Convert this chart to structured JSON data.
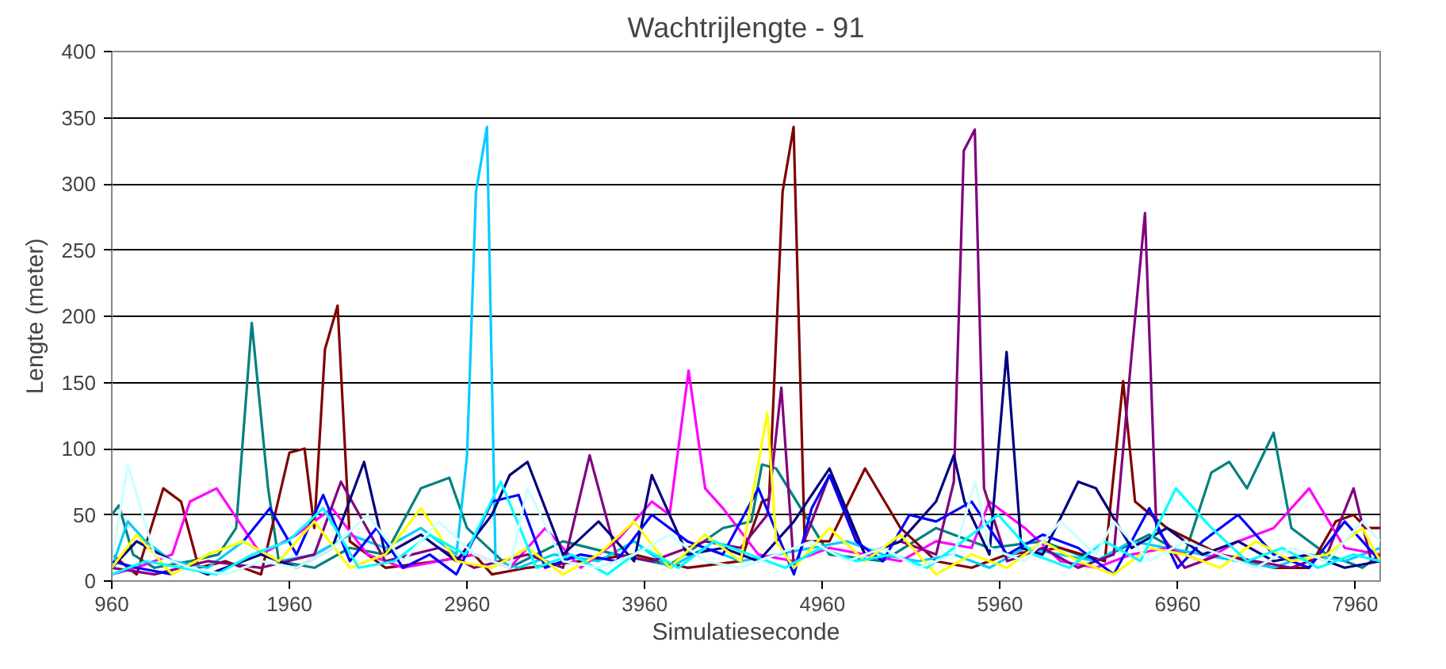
{
  "chart_data": {
    "type": "line",
    "title": "Wachtrijlengte - 91",
    "xlabel": "Simulatieseconde",
    "ylabel": "Lengte (meter)",
    "xlim": [
      960,
      8100
    ],
    "ylim": [
      0,
      400
    ],
    "xticks": [
      960,
      1960,
      2960,
      3960,
      4960,
      5960,
      6960,
      7960
    ],
    "yticks": [
      0,
      50,
      100,
      150,
      200,
      250,
      300,
      350,
      400
    ],
    "grid": "y",
    "marker": "none",
    "line_style": "solid",
    "series": [
      {
        "color": "#008080",
        "x": [
          960,
          1000,
          1080,
          1200,
          1400,
          1560,
          1660,
          1748,
          1840,
          1900,
          2100,
          2300,
          2500,
          2700,
          2860,
          2960,
          3200,
          3500,
          3800,
          4100,
          4400,
          4560,
          4620,
          4700,
          5000,
          5300,
          5600,
          5900,
          6200,
          6500,
          6800,
          7000,
          7150,
          7250,
          7350,
          7500,
          7600,
          7800,
          8000,
          8100
        ],
        "values": [
          50,
          57,
          20,
          10,
          15,
          20,
          40,
          195,
          70,
          15,
          10,
          25,
          20,
          70,
          78,
          40,
          10,
          30,
          20,
          12,
          40,
          45,
          88,
          85,
          20,
          15,
          40,
          25,
          30,
          15,
          35,
          20,
          82,
          90,
          70,
          112,
          40,
          20,
          10,
          20
        ]
      },
      {
        "color": "#800000",
        "x": [
          960,
          1100,
          1250,
          1350,
          1450,
          1600,
          1800,
          1960,
          2045,
          2100,
          2160,
          2231,
          2300,
          2500,
          2800,
          3000,
          3100,
          3300,
          3600,
          3900,
          4200,
          4500,
          4620,
          4660,
          4736,
          4798,
          4860,
          5000,
          5200,
          5400,
          5600,
          5800,
          6000,
          6300,
          6550,
          6653,
          6720,
          6900,
          7200,
          7500,
          7700,
          7850,
          7950,
          8020,
          8100
        ],
        "values": [
          20,
          5,
          70,
          60,
          10,
          15,
          5,
          97,
          100,
          40,
          175,
          208,
          30,
          10,
          15,
          20,
          5,
          10,
          15,
          20,
          10,
          15,
          60,
          62,
          294,
          343,
          30,
          30,
          85,
          40,
          15,
          10,
          20,
          25,
          15,
          151,
          60,
          40,
          20,
          10,
          10,
          45,
          50,
          40,
          40
        ]
      },
      {
        "color": "#00ccff",
        "x": [
          960,
          1050,
          1150,
          1300,
          1500,
          1700,
          1900,
          2100,
          2300,
          2500,
          2700,
          2900,
          2960,
          3010,
          3072,
          3120,
          3250,
          3450,
          3700,
          3900,
          4100,
          4300,
          4500,
          4700,
          4900,
          5100,
          5300,
          5500,
          5700,
          5900,
          6100,
          6300,
          6500,
          6700,
          6900,
          7100,
          7300,
          7500,
          7700,
          7900,
          8100
        ],
        "values": [
          10,
          45,
          30,
          15,
          10,
          30,
          15,
          20,
          35,
          25,
          40,
          20,
          95,
          294,
          343,
          15,
          10,
          20,
          15,
          30,
          10,
          25,
          15,
          20,
          25,
          30,
          20,
          15,
          20,
          10,
          25,
          20,
          15,
          30,
          25,
          20,
          15,
          10,
          20,
          15,
          25
        ]
      },
      {
        "color": "#ff00ff",
        "x": [
          960,
          1100,
          1300,
          1400,
          1550,
          1800,
          2000,
          2200,
          2400,
          2600,
          2800,
          3000,
          3200,
          3400,
          3600,
          3800,
          4000,
          4100,
          4207,
          4300,
          4400,
          4600,
          4800,
          5000,
          5200,
          5400,
          5600,
          5800,
          5900,
          6100,
          6300,
          6500,
          6700,
          6900,
          7100,
          7300,
          7500,
          7700,
          7900,
          8100
        ],
        "values": [
          5,
          10,
          20,
          60,
          70,
          20,
          35,
          55,
          20,
          10,
          15,
          20,
          10,
          40,
          10,
          30,
          60,
          50,
          159,
          70,
          55,
          20,
          15,
          25,
          20,
          15,
          30,
          25,
          60,
          40,
          15,
          10,
          20,
          25,
          15,
          30,
          40,
          70,
          25,
          20
        ]
      },
      {
        "color": "#800080",
        "x": [
          960,
          1200,
          1500,
          1800,
          2100,
          2250,
          2500,
          2800,
          3000,
          3300,
          3500,
          3650,
          3800,
          4000,
          4300,
          4500,
          4650,
          4729,
          4800,
          5000,
          5200,
          5400,
          5600,
          5700,
          5756,
          5818,
          5870,
          6000,
          6200,
          6400,
          6600,
          6700,
          6776,
          6840,
          7000,
          7200,
          7400,
          7600,
          7800,
          7950,
          8050,
          8100
        ],
        "values": [
          10,
          5,
          15,
          10,
          20,
          75,
          15,
          25,
          10,
          20,
          10,
          95,
          20,
          15,
          30,
          25,
          50,
          146,
          10,
          80,
          20,
          30,
          20,
          75,
          325,
          341,
          70,
          15,
          25,
          10,
          20,
          170,
          278,
          40,
          10,
          20,
          15,
          10,
          20,
          70,
          15,
          20
        ]
      },
      {
        "color": "#000080",
        "x": [
          960,
          1100,
          1300,
          1500,
          1800,
          2000,
          2200,
          2380,
          2500,
          2700,
          2900,
          3100,
          3200,
          3300,
          3500,
          3700,
          3900,
          4000,
          4200,
          4400,
          4600,
          4800,
          5000,
          5200,
          5400,
          5600,
          5700,
          5760,
          5900,
          5997,
          6080,
          6200,
          6400,
          6500,
          6700,
          6900,
          7100,
          7300,
          7500,
          7700,
          7900,
          8100
        ],
        "values": [
          10,
          30,
          15,
          5,
          20,
          10,
          25,
          90,
          20,
          35,
          15,
          50,
          80,
          90,
          20,
          45,
          15,
          80,
          20,
          25,
          15,
          45,
          85,
          20,
          30,
          60,
          95,
          60,
          20,
          173,
          25,
          20,
          75,
          70,
          25,
          40,
          20,
          30,
          15,
          20,
          10,
          15
        ]
      },
      {
        "color": "#0000ff",
        "x": [
          960,
          1100,
          1300,
          1500,
          1700,
          1850,
          2000,
          2150,
          2300,
          2450,
          2600,
          2750,
          2900,
          3100,
          3250,
          3400,
          3600,
          3800,
          4000,
          4200,
          4400,
          4600,
          4800,
          4900,
          5000,
          5150,
          5300,
          5450,
          5600,
          5800,
          6000,
          6200,
          6400,
          6600,
          6800,
          6960,
          7100,
          7300,
          7500,
          7700,
          7900,
          8100
        ],
        "values": [
          15,
          10,
          5,
          null,
          30,
          55,
          20,
          65,
          15,
          40,
          10,
          20,
          5,
          60,
          65,
          10,
          20,
          15,
          50,
          30,
          20,
          70,
          5,
          55,
          80,
          30,
          15,
          50,
          45,
          60,
          20,
          35,
          25,
          5,
          55,
          10,
          30,
          50,
          20,
          10,
          45,
          15
        ]
      },
      {
        "color": "#ffff00",
        "x": [
          960,
          1100,
          1300,
          1500,
          1700,
          1900,
          2100,
          2300,
          2500,
          2700,
          2900,
          3100,
          3300,
          3500,
          3700,
          3900,
          4100,
          4300,
          4500,
          4650,
          4700,
          4800,
          5000,
          5200,
          5400,
          5600,
          5800,
          6000,
          6200,
          6400,
          6600,
          6800,
          7000,
          7200,
          7400,
          7600,
          7800,
          8000,
          8100
        ],
        "values": [
          10,
          35,
          5,
          20,
          30,
          15,
          45,
          10,
          20,
          55,
          15,
          10,
          25,
          5,
          20,
          45,
          10,
          35,
          15,
          127,
          30,
          10,
          40,
          15,
          35,
          5,
          20,
          10,
          30,
          15,
          5,
          25,
          20,
          10,
          30,
          15,
          20,
          40,
          15
        ]
      },
      {
        "color": "#00ffff",
        "x": [
          960,
          1150,
          1350,
          1550,
          1750,
          1950,
          2150,
          2350,
          2550,
          2750,
          2950,
          3150,
          3350,
          3550,
          3750,
          3950,
          4150,
          4350,
          4550,
          4750,
          4950,
          5150,
          5350,
          5550,
          5750,
          5950,
          6150,
          6350,
          6550,
          6750,
          6950,
          7150,
          7350,
          7550,
          7750,
          7950,
          8100
        ],
        "values": [
          5,
          15,
          10,
          5,
          20,
          30,
          55,
          10,
          15,
          35,
          20,
          75,
          10,
          20,
          5,
          25,
          10,
          30,
          20,
          10,
          25,
          15,
          20,
          10,
          30,
          50,
          20,
          10,
          30,
          15,
          70,
          40,
          15,
          25,
          10,
          20,
          15
        ]
      },
      {
        "color": "#ccffff",
        "x": [
          960,
          1050,
          1200,
          1400,
          1600,
          1800,
          2000,
          2200,
          2400,
          2600,
          2800,
          3000,
          3200,
          3300,
          3500,
          3700,
          3900,
          4100,
          4300,
          4500,
          4700,
          4900,
          5100,
          5300,
          5500,
          5700,
          5820,
          5900,
          6100,
          6300,
          6500,
          6600,
          6800,
          7000,
          7200,
          7400,
          7600,
          7800,
          8000,
          8100
        ],
        "values": [
          15,
          88,
          20,
          10,
          5,
          15,
          10,
          25,
          50,
          15,
          45,
          20,
          10,
          70,
          15,
          10,
          20,
          35,
          15,
          10,
          20,
          30,
          15,
          25,
          10,
          20,
          75,
          25,
          15,
          45,
          20,
          45,
          15,
          30,
          20,
          10,
          25,
          15,
          45,
          30
        ]
      }
    ]
  }
}
